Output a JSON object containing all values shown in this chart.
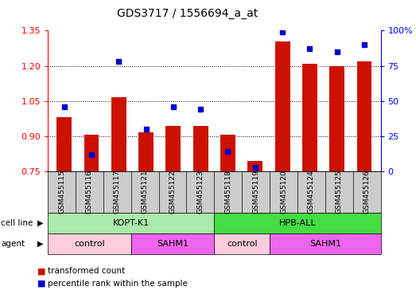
{
  "title": "GDS3717 / 1556694_a_at",
  "samples": [
    "GSM455115",
    "GSM455116",
    "GSM455117",
    "GSM455121",
    "GSM455122",
    "GSM455123",
    "GSM455118",
    "GSM455119",
    "GSM455120",
    "GSM455124",
    "GSM455125",
    "GSM455126"
  ],
  "red_values": [
    0.98,
    0.905,
    1.065,
    0.915,
    0.945,
    0.945,
    0.905,
    0.795,
    1.305,
    1.21,
    1.2,
    1.22
  ],
  "blue_values_pct": [
    46,
    12,
    78,
    30,
    46,
    44,
    14,
    3,
    99,
    87,
    85,
    90
  ],
  "y_min": 0.75,
  "y_max": 1.35,
  "y_ticks_left": [
    0.75,
    0.9,
    1.05,
    1.2,
    1.35
  ],
  "y_ticks_right": [
    0,
    25,
    50,
    75,
    100
  ],
  "cell_line_groups": [
    {
      "label": "KOPT-K1",
      "start": 0,
      "end": 6,
      "color": "#AAEAAA"
    },
    {
      "label": "HPB-ALL",
      "start": 6,
      "end": 12,
      "color": "#44DD44"
    }
  ],
  "agent_groups": [
    {
      "label": "control",
      "start": 0,
      "end": 3,
      "color": "#FFCCDD"
    },
    {
      "label": "SAHM1",
      "start": 3,
      "end": 6,
      "color": "#EE66EE"
    },
    {
      "label": "control",
      "start": 6,
      "end": 8,
      "color": "#FFCCDD"
    },
    {
      "label": "SAHM1",
      "start": 8,
      "end": 12,
      "color": "#EE66EE"
    }
  ],
  "bar_color": "#CC1100",
  "dot_color": "#0000CC",
  "plot_bg": "#FFFFFF",
  "tick_area_bg": "#CCCCCC",
  "legend_red_label": "transformed count",
  "legend_blue_label": "percentile rank within the sample",
  "cell_line_label": "cell line",
  "agent_label": "agent"
}
